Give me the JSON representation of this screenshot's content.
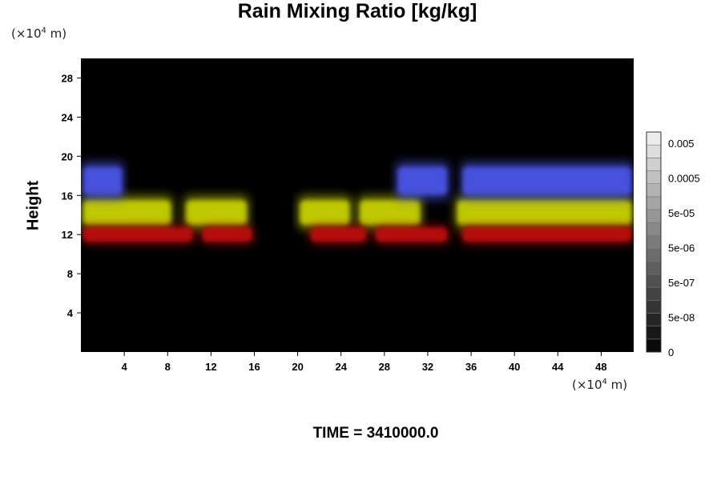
{
  "chart_data": {
    "type": "heatmap",
    "title": "Rain Mixing Ratio [kg/kg]",
    "xlabel": "",
    "ylabel": "Height",
    "x_unit": "(×10⁴ m)",
    "y_unit": "(×10⁴ m)",
    "xlim": [
      0,
      51
    ],
    "ylim": [
      0,
      30
    ],
    "x_ticks": [
      "4",
      "8",
      "12",
      "16",
      "20",
      "24",
      "28",
      "32",
      "36",
      "40",
      "44",
      "48"
    ],
    "y_ticks": [
      "4",
      "8",
      "12",
      "16",
      "20",
      "24",
      "28"
    ],
    "x_tick_values": [
      4,
      8,
      12,
      16,
      20,
      24,
      28,
      32,
      36,
      40,
      44,
      48
    ],
    "y_tick_values": [
      4,
      8,
      12,
      16,
      20,
      24,
      28
    ],
    "background_color": "#000000",
    "colorbar": {
      "labels": [
        "0.005",
        "0.0005",
        "5e-05",
        "5e-06",
        "5e-07",
        "5e-08",
        "0"
      ],
      "levels": 17
    },
    "layers": [
      {
        "name": "red",
        "color": "#c01010",
        "y_range": [
          11,
          13
        ],
        "segments": [
          [
            0,
            10.5
          ],
          [
            11,
            16
          ],
          [
            21,
            26.5
          ],
          [
            27,
            34
          ],
          [
            35,
            51
          ]
        ]
      },
      {
        "name": "yellow",
        "color": "#c8d200",
        "y_range": [
          12.5,
          16
        ],
        "segments": [
          [
            0,
            8.5
          ],
          [
            9.5,
            15.5
          ],
          [
            20,
            25
          ],
          [
            25.5,
            31.5
          ],
          [
            34.5,
            51
          ]
        ]
      },
      {
        "name": "blue",
        "color": "#4b55e6",
        "y_range": [
          15.5,
          19.5
        ],
        "segments": [
          [
            0,
            4
          ],
          [
            29,
            34
          ],
          [
            35,
            51
          ]
        ]
      }
    ]
  },
  "time_label": "TIME = 3410000.0"
}
